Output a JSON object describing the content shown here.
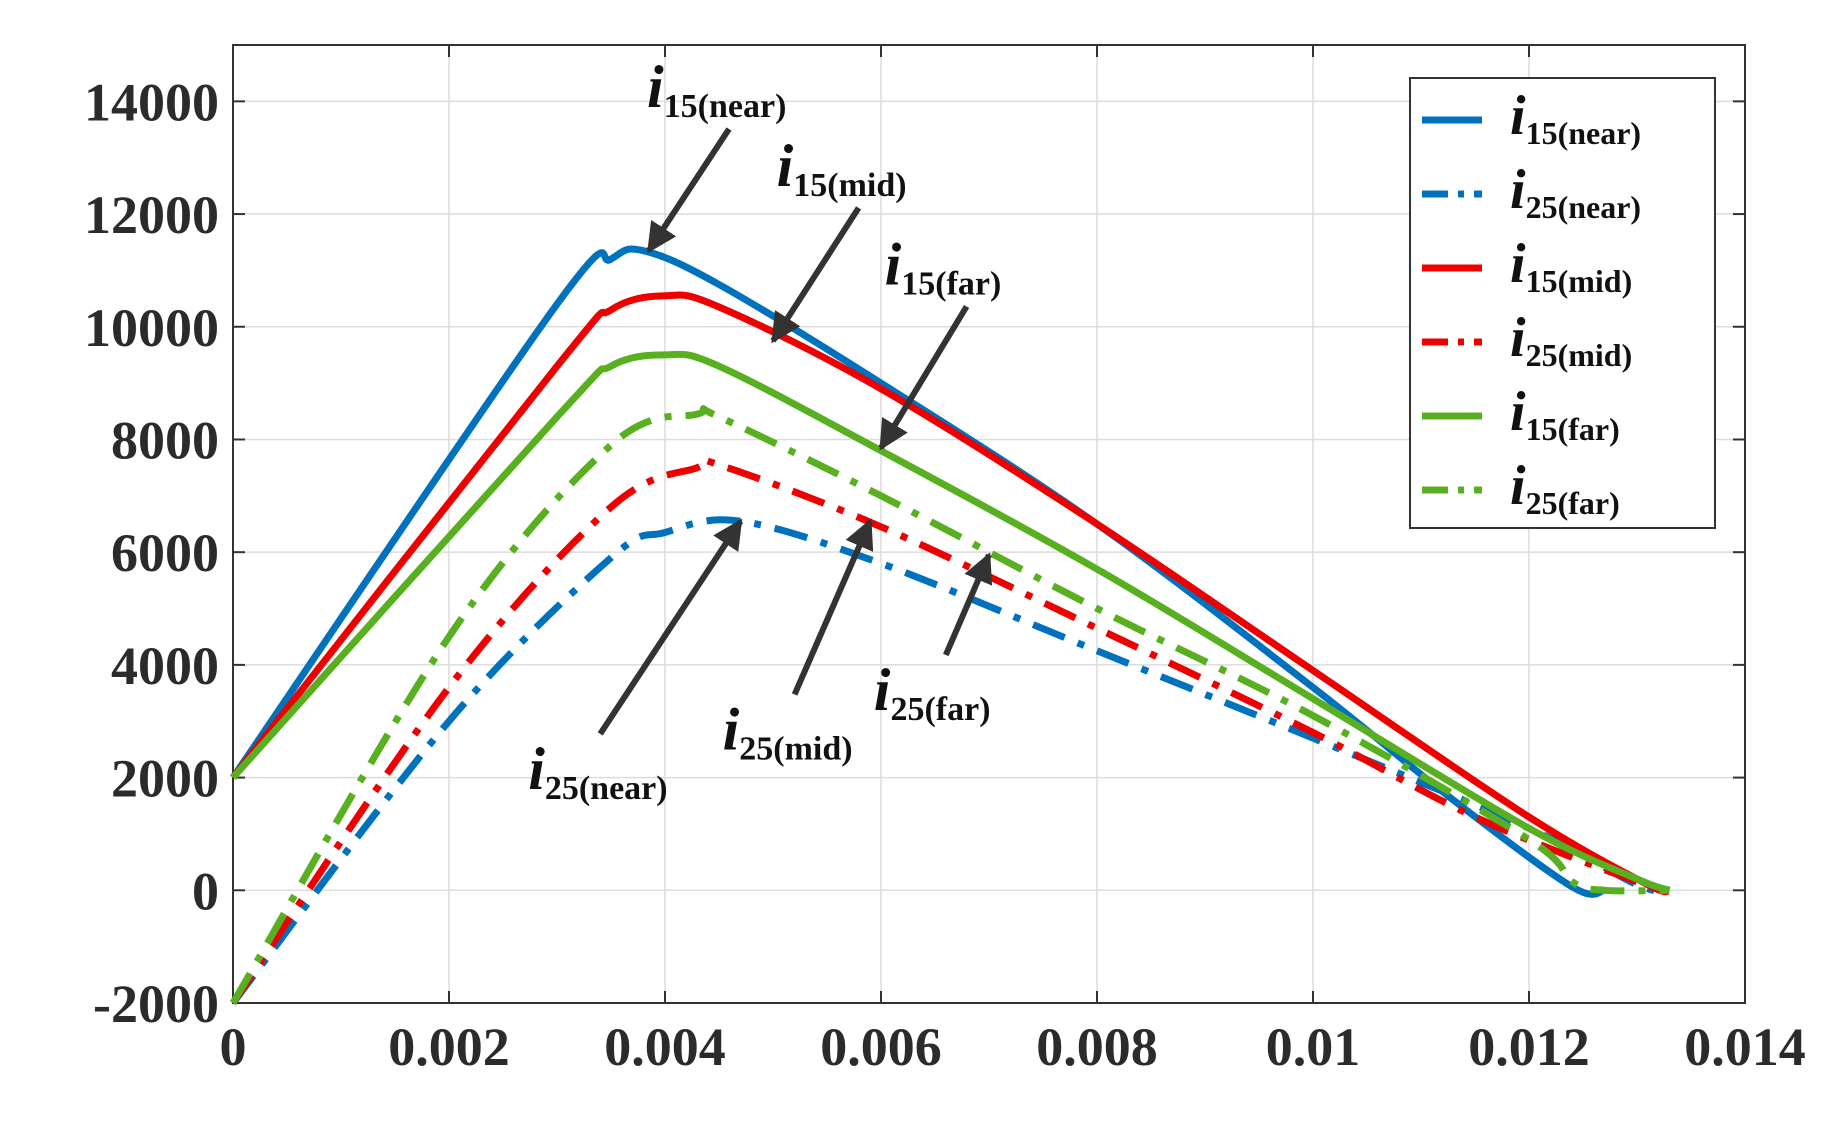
{
  "chart_data": {
    "type": "line",
    "title": "",
    "xlabel": "",
    "ylabel": "",
    "xlim": [
      0,
      0.014
    ],
    "ylim": [
      -2000,
      15000
    ],
    "grid": true,
    "legend_position": "top-right",
    "x_ticks": [
      0,
      0.002,
      0.004,
      0.006,
      0.008,
      0.01,
      0.012,
      0.014
    ],
    "x_tick_labels": [
      "0",
      "0.002",
      "0.004",
      "0.006",
      "0.008",
      "0.01",
      "0.012",
      "0.014"
    ],
    "y_ticks": [
      -2000,
      0,
      2000,
      4000,
      6000,
      8000,
      10000,
      12000,
      14000
    ],
    "y_tick_labels": [
      "-2000",
      "0",
      "2000",
      "4000",
      "6000",
      "8000",
      "10000",
      "12000",
      "14000"
    ],
    "series": [
      {
        "name": "i15(near)",
        "symbol": "i",
        "subscript": "15(near)",
        "color": "#0072BD",
        "style": "solid",
        "points": [
          [
            0,
            2000
          ],
          [
            0.003,
            10400
          ],
          [
            0.0035,
            11200
          ],
          [
            0.0038,
            11350
          ],
          [
            0.0045,
            10750
          ],
          [
            0.006,
            9000
          ],
          [
            0.008,
            6500
          ],
          [
            0.01,
            3600
          ],
          [
            0.0113,
            1600
          ],
          [
            0.0124,
            60
          ],
          [
            0.0127,
            0
          ]
        ]
      },
      {
        "name": "i25(near)",
        "symbol": "i",
        "subscript": "25(near)",
        "color": "#0072BD",
        "style": "dashdot",
        "points": [
          [
            0,
            -2000
          ],
          [
            0.002,
            3000
          ],
          [
            0.0035,
            5900
          ],
          [
            0.004,
            6350
          ],
          [
            0.0047,
            6550
          ],
          [
            0.006,
            5800
          ],
          [
            0.008,
            4250
          ],
          [
            0.01,
            2700
          ],
          [
            0.012,
            1100
          ],
          [
            0.013,
            100
          ],
          [
            0.0133,
            0
          ]
        ]
      },
      {
        "name": "i15(mid)",
        "symbol": "i",
        "subscript": "15(mid)",
        "color": "#EE0000",
        "style": "solid",
        "points": [
          [
            0,
            2000
          ],
          [
            0.003,
            9300
          ],
          [
            0.0035,
            10300
          ],
          [
            0.004,
            10550
          ],
          [
            0.0045,
            10350
          ],
          [
            0.006,
            8900
          ],
          [
            0.008,
            6500
          ],
          [
            0.01,
            3900
          ],
          [
            0.012,
            1300
          ],
          [
            0.0131,
            100
          ],
          [
            0.0133,
            0
          ]
        ]
      },
      {
        "name": "i25(mid)",
        "symbol": "i",
        "subscript": "25(mid)",
        "color": "#EE0000",
        "style": "dashdot",
        "points": [
          [
            0,
            -2000
          ],
          [
            0.002,
            3600
          ],
          [
            0.0035,
            6800
          ],
          [
            0.0043,
            7500
          ],
          [
            0.0045,
            7550
          ],
          [
            0.006,
            6450
          ],
          [
            0.008,
            4650
          ],
          [
            0.01,
            2800
          ],
          [
            0.0115,
            1300
          ],
          [
            0.013,
            150
          ],
          [
            0.0133,
            0
          ]
        ]
      },
      {
        "name": "i15(far)",
        "symbol": "i",
        "subscript": "15(far)",
        "color": "#58B020",
        "style": "solid",
        "points": [
          [
            0,
            2000
          ],
          [
            0.003,
            8400
          ],
          [
            0.0035,
            9300
          ],
          [
            0.004,
            9500
          ],
          [
            0.0045,
            9300
          ],
          [
            0.006,
            7800
          ],
          [
            0.008,
            5700
          ],
          [
            0.01,
            3400
          ],
          [
            0.012,
            1100
          ],
          [
            0.013,
            200
          ],
          [
            0.0133,
            0
          ]
        ]
      },
      {
        "name": "i25(far)",
        "symbol": "i",
        "subscript": "25(far)",
        "color": "#58B020",
        "style": "dashdot",
        "points": [
          [
            0,
            -2000
          ],
          [
            0.002,
            4500
          ],
          [
            0.0035,
            7900
          ],
          [
            0.0043,
            8450
          ],
          [
            0.0045,
            8400
          ],
          [
            0.006,
            7000
          ],
          [
            0.008,
            5000
          ],
          [
            0.01,
            3100
          ],
          [
            0.012,
            900
          ],
          [
            0.0124,
            150
          ],
          [
            0.0127,
            0
          ],
          [
            0.0133,
            0
          ]
        ]
      }
    ],
    "annotations": [
      {
        "name": "i15(near)",
        "symbol": "i",
        "subscript": "15(near)",
        "target": [
          0.00385,
          11350
        ],
        "text_at": [
          0.0045,
          13900
        ]
      },
      {
        "name": "i15(mid)",
        "symbol": "i",
        "subscript": "15(mid)",
        "target": [
          0.005,
          9750
        ],
        "text_at": [
          0.0057,
          12500
        ]
      },
      {
        "name": "i15(far)",
        "symbol": "i",
        "subscript": "15(far)",
        "target": [
          0.006,
          7850
        ],
        "text_at": [
          0.0067,
          10750
        ]
      },
      {
        "name": "i25(near)",
        "symbol": "i",
        "subscript": "25(near)",
        "target": [
          0.0047,
          6550
        ],
        "text_at": [
          0.0034,
          1800
        ]
      },
      {
        "name": "i25(mid)",
        "symbol": "i",
        "subscript": "25(mid)",
        "target": [
          0.0059,
          6550
        ],
        "text_at": [
          0.0052,
          2500
        ]
      },
      {
        "name": "i25(far)",
        "symbol": "i",
        "subscript": "25(far)",
        "target": [
          0.007,
          5950
        ],
        "text_at": [
          0.0066,
          3200
        ]
      }
    ]
  }
}
